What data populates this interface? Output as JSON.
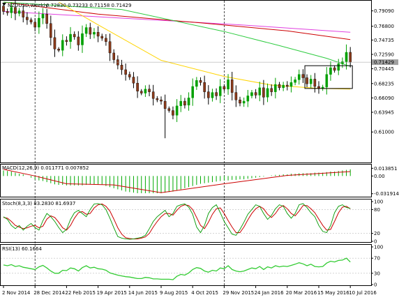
{
  "main_header": {
    "symbol_tf": "NZDUSD,Weekly",
    "ohlc": "0.72830 0.73233 0.71158 0.71429",
    "current_price": "0.71429"
  },
  "chart_data": [
    {
      "type": "candlestick",
      "title": "NZDUSD,Weekly",
      "ylim": [
        0.5665,
        0.804
      ],
      "y_ticks": [
        "0.79090",
        "0.76800",
        "0.74735",
        "0.72590",
        "0.70445",
        "0.68235",
        "0.66090",
        "0.63945",
        "0.61000"
      ],
      "y_tick_values": [
        0.7909,
        0.768,
        0.74735,
        0.7259,
        0.70445,
        0.68235,
        0.6609,
        0.63945,
        0.61
      ],
      "current_price": 0.71429,
      "x_labels": [
        "2 Nov 2014",
        "28 Dec 2014",
        "22 Feb 2015",
        "19 Apr 2015",
        "14 Jun 2015",
        "9 Aug 2015",
        "4 Oct 2015",
        "29 Nov 2015",
        "24 Jan 2016",
        "20 Mar 2016",
        "15 May 2016",
        "10 Jul 2016"
      ],
      "x_label_index": [
        0,
        8,
        16,
        24,
        32,
        40,
        48,
        56,
        64,
        72,
        80,
        88
      ],
      "period_separators": [
        8,
        56
      ],
      "closes": [
        0.79,
        0.788,
        0.796,
        0.787,
        0.791,
        0.7815,
        0.7775,
        0.774,
        0.7665,
        0.78,
        0.786,
        0.772,
        0.751,
        0.734,
        0.732,
        0.747,
        0.745,
        0.756,
        0.752,
        0.74,
        0.757,
        0.766,
        0.756,
        0.759,
        0.753,
        0.75,
        0.745,
        0.728,
        0.718,
        0.71,
        0.703,
        0.696,
        0.692,
        0.683,
        0.671,
        0.668,
        0.674,
        0.67,
        0.66,
        0.658,
        0.656,
        0.645,
        0.642,
        0.635,
        0.649,
        0.656,
        0.65,
        0.661,
        0.678,
        0.687,
        0.684,
        0.67,
        0.661,
        0.669,
        0.664,
        0.678,
        0.674,
        0.688,
        0.669,
        0.658,
        0.653,
        0.656,
        0.664,
        0.669,
        0.665,
        0.676,
        0.662,
        0.675,
        0.67,
        0.681,
        0.676,
        0.68,
        0.678,
        0.684,
        0.688,
        0.696,
        0.691,
        0.682,
        0.689,
        0.678,
        0.675,
        0.677,
        0.696,
        0.706,
        0.702,
        0.712,
        0.715,
        0.729,
        0.7143
      ],
      "sma_fast": {
        "color": "#2ecc40",
        "points": [
          [
            0,
            0.804
          ],
          [
            30,
            0.793
          ],
          [
            56,
            0.76
          ],
          [
            70,
            0.739
          ],
          [
            82,
            0.72
          ],
          [
            88,
            0.708
          ]
        ]
      },
      "sma_slow": {
        "color": "#ffd400",
        "points": [
          [
            14,
            0.804
          ],
          [
            24,
            0.77
          ],
          [
            40,
            0.717
          ],
          [
            56,
            0.693
          ],
          [
            68,
            0.68
          ],
          [
            80,
            0.675
          ],
          [
            88,
            0.674
          ]
        ]
      },
      "ma_red": {
        "color": "#cc0000",
        "points": [
          [
            0,
            0.804
          ],
          [
            24,
            0.786
          ],
          [
            50,
            0.773
          ],
          [
            72,
            0.761
          ],
          [
            88,
            0.748
          ]
        ]
      },
      "ma_magenta": {
        "color": "#e040e0",
        "points": [
          [
            0,
            0.79
          ],
          [
            30,
            0.78
          ],
          [
            60,
            0.77
          ],
          [
            88,
            0.759
          ]
        ]
      },
      "box": {
        "from_index": 77,
        "to_index": 88,
        "high": 0.709,
        "low": 0.675
      }
    },
    {
      "type": "bar",
      "title": "MACD(12,26,9) 0.011771 0.007852",
      "y_ticks": [
        "0.013851",
        "0.00",
        "-0.031914"
      ],
      "y_tick_values": [
        0.013851,
        0.0,
        -0.031914
      ],
      "ylim": [
        -0.036,
        0.018
      ],
      "histogram": [
        0.01,
        0.009,
        0.008,
        0.006,
        0.004,
        0.003,
        0.0,
        -0.003,
        -0.006,
        -0.008,
        -0.009,
        -0.011,
        -0.013,
        -0.015,
        -0.016,
        -0.016,
        -0.017,
        -0.017,
        -0.017,
        -0.017,
        -0.017,
        -0.016,
        -0.015,
        -0.015,
        -0.015,
        -0.016,
        -0.018,
        -0.02,
        -0.022,
        -0.024,
        -0.026,
        -0.028,
        -0.029,
        -0.03,
        -0.031,
        -0.031,
        -0.031,
        -0.031,
        -0.031,
        -0.031,
        -0.031,
        -0.03,
        -0.029,
        -0.028,
        -0.026,
        -0.024,
        -0.022,
        -0.02,
        -0.018,
        -0.016,
        -0.014,
        -0.013,
        -0.012,
        -0.011,
        -0.01,
        -0.009,
        -0.008,
        -0.008,
        -0.007,
        -0.007,
        -0.006,
        -0.006,
        -0.005,
        -0.004,
        -0.003,
        -0.002,
        -0.001,
        0.0,
        0.001,
        0.002,
        0.002,
        0.003,
        0.003,
        0.004,
        0.004,
        0.005,
        0.005,
        0.005,
        0.005,
        0.006,
        0.006,
        0.006,
        0.007,
        0.008,
        0.008,
        0.009,
        0.01,
        0.011,
        0.012
      ],
      "signal_points": [
        [
          0,
          0.012
        ],
        [
          8,
          0.0
        ],
        [
          16,
          -0.014
        ],
        [
          28,
          -0.016
        ],
        [
          40,
          -0.03
        ],
        [
          56,
          -0.014
        ],
        [
          72,
          0.001
        ],
        [
          88,
          0.0079
        ]
      ]
    },
    {
      "type": "line",
      "title": "Stoch(8,3,3) 83.2830 81.6937",
      "y_ticks": [
        "100",
        "80",
        "20",
        "0"
      ],
      "y_tick_values": [
        100,
        80,
        20,
        0
      ],
      "ylim": [
        0,
        100
      ],
      "k_color": "#009900",
      "d_color": "#cc0000",
      "k": [
        62,
        55,
        40,
        32,
        40,
        28,
        38,
        45,
        35,
        28,
        52,
        70,
        62,
        50,
        35,
        22,
        30,
        55,
        72,
        78,
        70,
        62,
        80,
        94,
        95,
        92,
        80,
        58,
        34,
        12,
        8,
        6,
        5,
        6,
        8,
        10,
        15,
        32,
        50,
        62,
        70,
        78,
        62,
        70,
        88,
        92,
        94,
        86,
        68,
        36,
        22,
        40,
        70,
        85,
        92,
        72,
        50,
        34,
        18,
        15,
        30,
        48,
        68,
        80,
        92,
        88,
        70,
        55,
        65,
        82,
        92,
        88,
        70,
        58,
        70,
        92,
        95,
        85,
        72,
        62,
        40,
        25,
        22,
        40,
        72,
        88,
        92,
        85,
        83
      ],
      "d": [
        60,
        58,
        50,
        40,
        36,
        32,
        34,
        38,
        40,
        34,
        38,
        56,
        64,
        60,
        48,
        34,
        28,
        40,
        58,
        72,
        75,
        68,
        70,
        84,
        92,
        94,
        88,
        76,
        56,
        34,
        18,
        9,
        7,
        6,
        6,
        8,
        11,
        20,
        36,
        50,
        62,
        70,
        70,
        66,
        78,
        88,
        92,
        90,
        80,
        60,
        40,
        32,
        48,
        68,
        82,
        84,
        70,
        52,
        36,
        22,
        22,
        36,
        54,
        70,
        82,
        88,
        82,
        68,
        60,
        70,
        84,
        90,
        82,
        70,
        64,
        76,
        90,
        90,
        82,
        72,
        56,
        40,
        28,
        30,
        50,
        72,
        86,
        88,
        82
      ]
    },
    {
      "type": "line",
      "title": "RSI(13) 60.1664",
      "y_ticks": [
        "100",
        "70",
        "30",
        "0"
      ],
      "y_tick_values": [
        100,
        70,
        30,
        0
      ],
      "ylim": [
        0,
        100
      ],
      "color": "#33cc33",
      "values": [
        52,
        50,
        53,
        48,
        50,
        46,
        44,
        42,
        40,
        47,
        51,
        44,
        36,
        30,
        30,
        38,
        37,
        44,
        42,
        36,
        45,
        50,
        44,
        46,
        42,
        41,
        38,
        31,
        28,
        25,
        23,
        21,
        20,
        18,
        16,
        16,
        19,
        18,
        15,
        15,
        14,
        14,
        14,
        13,
        22,
        27,
        25,
        31,
        40,
        45,
        43,
        36,
        33,
        38,
        36,
        44,
        42,
        50,
        40,
        36,
        34,
        36,
        40,
        44,
        42,
        48,
        40,
        47,
        44,
        50,
        47,
        49,
        48,
        51,
        54,
        58,
        55,
        50,
        54,
        48,
        47,
        48,
        57,
        62,
        60,
        64,
        65,
        70,
        60
      ]
    }
  ]
}
